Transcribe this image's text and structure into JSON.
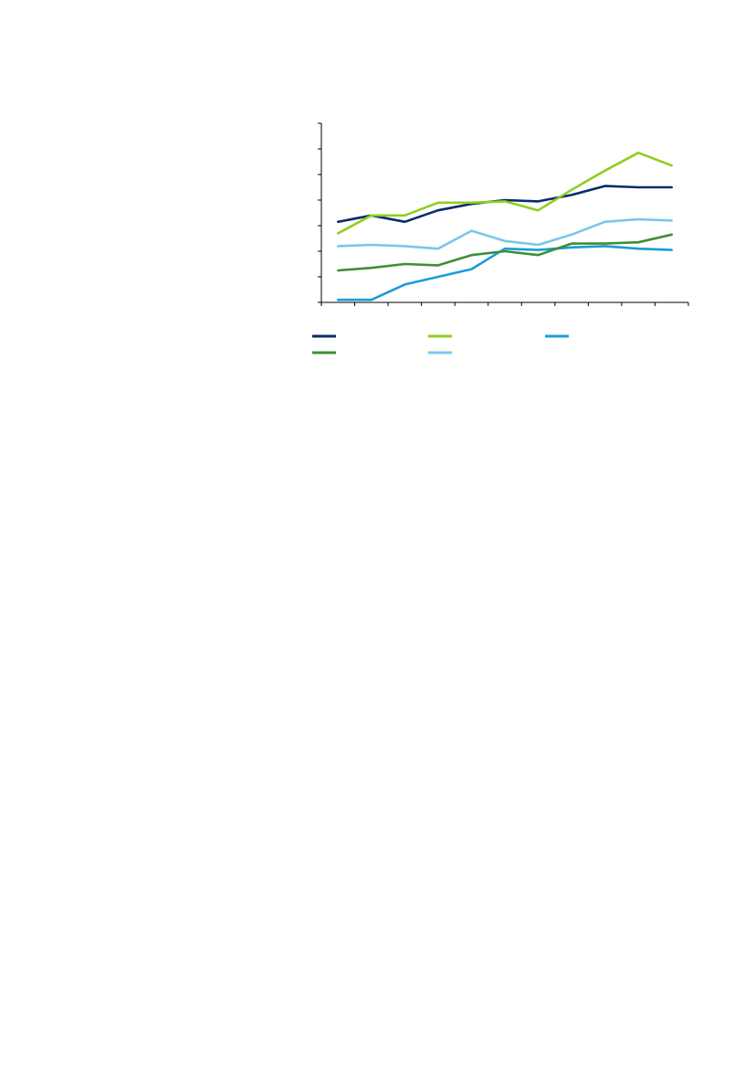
{
  "chart_data": {
    "type": "line",
    "title": "",
    "xlabel": "",
    "ylabel": "",
    "x_count": 11,
    "ylim": [
      0,
      7
    ],
    "y_tick_step": 1,
    "grid": false,
    "legend_placement": "bottom",
    "series": [
      {
        "color": "#0a2a6b",
        "values": [
          3.15,
          3.4,
          3.15,
          3.6,
          3.85,
          4.0,
          3.95,
          4.2,
          4.55,
          4.5,
          4.5
        ]
      },
      {
        "color": "#8fce1f",
        "values": [
          2.7,
          3.4,
          3.4,
          3.9,
          3.9,
          3.95,
          3.6,
          4.4,
          5.15,
          5.85,
          5.35
        ]
      },
      {
        "color": "#1a9cd8",
        "values": [
          0.1,
          0.1,
          0.7,
          1.0,
          1.3,
          2.1,
          2.05,
          2.15,
          2.2,
          2.1,
          2.05
        ]
      },
      {
        "color": "#3e8e35",
        "values": [
          1.25,
          1.35,
          1.5,
          1.45,
          1.85,
          2.0,
          1.85,
          2.3,
          2.3,
          2.35,
          2.65
        ]
      },
      {
        "color": "#78c8e8",
        "values": [
          2.2,
          2.25,
          2.2,
          2.1,
          2.8,
          2.4,
          2.25,
          2.65,
          3.15,
          3.25,
          3.2
        ]
      }
    ]
  }
}
